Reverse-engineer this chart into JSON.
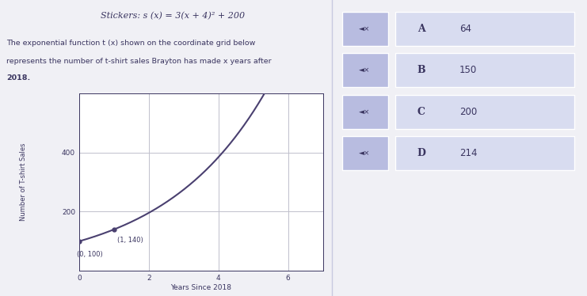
{
  "title_stickers": "Stickers: s (x) = 3(x + 4)² + 200",
  "description_line1": "The exponential function t (x) shown on the coordinate grid below",
  "description_line2": "represents the number of t-shirt sales Brayton has made x years after",
  "description_line3": "2018.",
  "xlabel": "Years Since 2018",
  "ylabel": "Number of T-shirt Sales",
  "xlim": [
    0,
    7
  ],
  "ylim": [
    0,
    600
  ],
  "yticks": [
    200,
    400
  ],
  "xticks": [
    0,
    2,
    4,
    6
  ],
  "point1": [
    0,
    100
  ],
  "point2": [
    1,
    140
  ],
  "label1": "(0, 100)",
  "label2": "(1, 140)",
  "curve_color": "#4a4070",
  "grid_color": "#c0c0cc",
  "plot_bg": "#ffffff",
  "panel_bg": "#f0f0f0",
  "text_color": "#3a3560",
  "options": [
    {
      "letter": "A",
      "value": "64"
    },
    {
      "letter": "B",
      "value": "150"
    },
    {
      "letter": "C",
      "value": "200"
    },
    {
      "letter": "D",
      "value": "214"
    }
  ],
  "option_speaker_bg": "#b8bce0",
  "option_letter_bg": "#b8bce0",
  "option_value_bg": "#d8dcf0",
  "option_text_color": "#3a3560",
  "right_panel_bg": "#e8eaf5",
  "divider_color": "#c8cae0",
  "fig_bg": "#f0f0f5"
}
